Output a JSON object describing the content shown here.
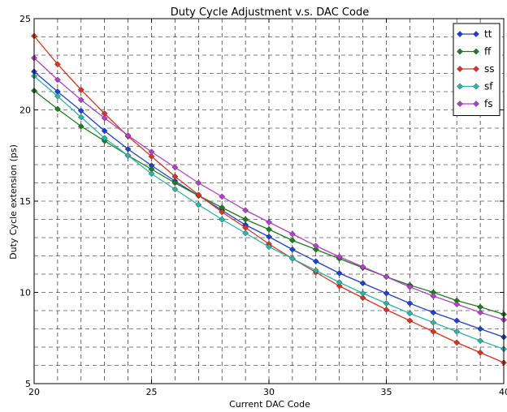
{
  "chart_data": {
    "type": "line",
    "title": "Duty Cycle Adjustment v.s. DAC Code",
    "xlabel": "Current DAC Code",
    "ylabel": "Duty Cycle extension (ps)",
    "xlim": [
      20,
      40
    ],
    "ylim": [
      5,
      25
    ],
    "xticks": [
      20,
      25,
      30,
      35,
      40
    ],
    "yticks": [
      5,
      10,
      15,
      20,
      25
    ],
    "grid": true,
    "grid_style": "dashed",
    "legend_position": "top-right",
    "x": [
      20,
      21,
      22,
      23,
      24,
      25,
      26,
      27,
      28,
      29,
      30,
      31,
      32,
      33,
      34,
      35,
      36,
      37,
      38,
      39,
      40
    ],
    "series": [
      {
        "name": "tt",
        "color": "#1f3fd6",
        "values": [
          22.1,
          21.0,
          19.95,
          18.85,
          17.85,
          16.95,
          16.1,
          15.3,
          14.5,
          13.7,
          13.05,
          12.35,
          11.7,
          11.05,
          10.5,
          9.95,
          9.4,
          8.9,
          8.45,
          8.0,
          7.55
        ]
      },
      {
        "name": "ff",
        "color": "#1b7f1b",
        "values": [
          21.05,
          20.05,
          19.1,
          18.3,
          17.5,
          16.75,
          16.0,
          15.3,
          14.65,
          14.0,
          13.45,
          12.85,
          12.35,
          11.85,
          11.35,
          10.85,
          10.4,
          10.0,
          9.55,
          9.2,
          8.8
        ]
      },
      {
        "name": "ss",
        "color": "#e0321c",
        "values": [
          24.05,
          22.5,
          21.1,
          19.8,
          18.55,
          17.45,
          16.35,
          15.35,
          14.4,
          13.55,
          12.65,
          11.85,
          11.1,
          10.35,
          9.7,
          9.05,
          8.45,
          7.85,
          7.25,
          6.7,
          6.15
        ]
      },
      {
        "name": "sf",
        "color": "#2ab5a8",
        "values": [
          21.85,
          20.75,
          19.6,
          18.45,
          17.5,
          16.5,
          15.65,
          14.8,
          14.0,
          13.25,
          12.5,
          11.85,
          11.2,
          10.55,
          9.95,
          9.4,
          8.85,
          8.35,
          7.85,
          7.35,
          6.9
        ]
      },
      {
        "name": "fs",
        "color": "#b43fc9",
        "values": [
          22.85,
          21.65,
          20.55,
          19.55,
          18.6,
          17.7,
          16.85,
          16.0,
          15.25,
          14.5,
          13.85,
          13.2,
          12.55,
          11.95,
          11.4,
          10.85,
          10.3,
          9.8,
          9.35,
          8.9,
          8.5
        ]
      }
    ]
  }
}
